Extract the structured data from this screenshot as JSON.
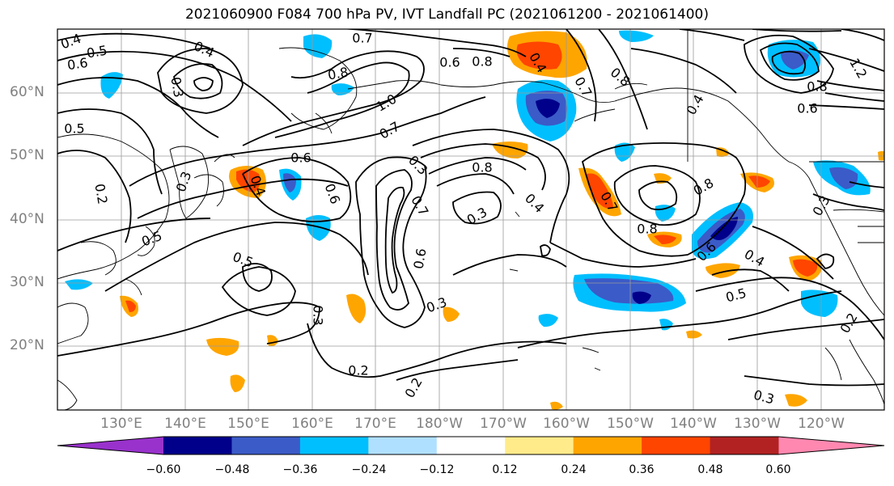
{
  "title": "2021060900 F084 700 hPa PV, IVT Landfall PC (2021061200 - 2021061400)",
  "latitude_labels": [
    "60°N",
    "50°N",
    "40°N",
    "30°N",
    "20°N"
  ],
  "longitude_labels": [
    "130°E",
    "140°E",
    "150°E",
    "160°E",
    "170°E",
    "180°W",
    "170°W",
    "160°W",
    "150°W",
    "140°W",
    "130°W",
    "120°W"
  ],
  "colorbar": {
    "tick_labels": [
      "−0.60",
      "−0.48",
      "−0.36",
      "−0.24",
      "−0.12",
      "0.12",
      "0.24",
      "0.36",
      "0.48",
      "0.60"
    ],
    "colors": [
      "#9932cc",
      "#00008b",
      "#3b5bc8",
      "#00bfff",
      "#b0e0ff",
      "#ffffff",
      "#ffeb8a",
      "#ffa500",
      "#ff4500",
      "#b22222",
      "#ff88b0"
    ]
  },
  "contour_labels": [
    "0.4",
    "0.5",
    "0.6",
    "0.3",
    "0.4",
    "0.7",
    "0.8",
    "1.0",
    "0.7",
    "0.6",
    "0.6",
    "0.8",
    "0.4",
    "0.7",
    "0.8",
    "1.2",
    "0.8",
    "0.6",
    "0.4",
    "0.5",
    "0.3",
    "0.4",
    "0.6",
    "0.8",
    "0.3",
    "0.7",
    "0.6",
    "0.3",
    "0.4",
    "0.7",
    "0.8",
    "0.8",
    "0.6",
    "0.4",
    "0.3",
    "0.5",
    "0.2",
    "0.3",
    "0.2",
    "0.5",
    "0.2",
    "0.3",
    "0.2",
    "0.3",
    "0.5"
  ]
}
